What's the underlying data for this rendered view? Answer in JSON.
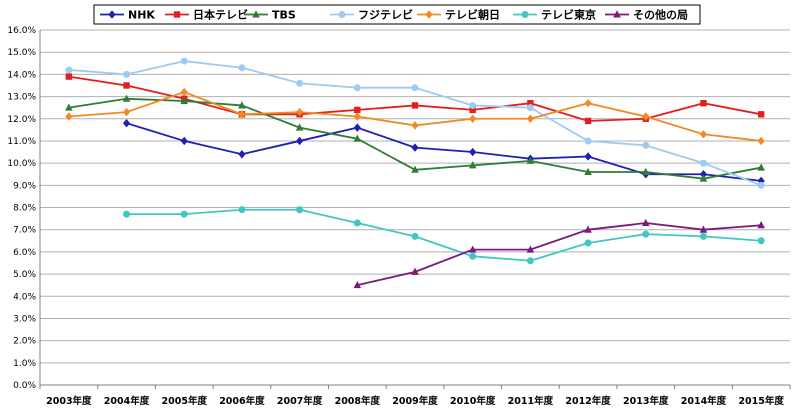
{
  "chart_data": {
    "type": "line",
    "categories": [
      "2003年度",
      "2004年度",
      "2005年度",
      "2006年度",
      "2007年度",
      "2008年度",
      "2009年度",
      "2010年度",
      "2011年度",
      "2012年度",
      "2013年度",
      "2014年度",
      "2015年度"
    ],
    "ylim": [
      0,
      16
    ],
    "y_ticks": [
      "0.0%",
      "1.0%",
      "2.0%",
      "3.0%",
      "4.0%",
      "5.0%",
      "6.0%",
      "7.0%",
      "8.0%",
      "9.0%",
      "10.0%",
      "11.0%",
      "12.0%",
      "13.0%",
      "14.0%",
      "15.0%",
      "16.0%"
    ],
    "grid": true,
    "legend": "top",
    "series": [
      {
        "name": "NHK",
        "color": "#1f1fb4",
        "marker": "diamond",
        "values": [
          null,
          11.8,
          11.0,
          10.4,
          11.0,
          11.6,
          10.7,
          10.5,
          10.2,
          10.3,
          9.5,
          9.5,
          9.2
        ]
      },
      {
        "name": "日本テレビ",
        "color": "#e0201f",
        "marker": "square",
        "values": [
          13.9,
          13.5,
          12.9,
          12.2,
          12.2,
          12.4,
          12.6,
          12.4,
          12.7,
          11.9,
          12.0,
          12.7,
          12.2
        ]
      },
      {
        "name": "TBS",
        "color": "#2e7d32",
        "marker": "triangle",
        "values": [
          12.5,
          12.9,
          12.8,
          12.6,
          11.6,
          11.1,
          9.7,
          9.9,
          10.1,
          9.6,
          9.6,
          9.3,
          9.8
        ]
      },
      {
        "name": "フジテレビ",
        "color": "#9ecbf2",
        "marker": "circle",
        "values": [
          14.2,
          14.0,
          14.6,
          14.3,
          13.6,
          13.4,
          13.4,
          12.6,
          12.5,
          11.0,
          10.8,
          10.0,
          9.0
        ]
      },
      {
        "name": "テレビ朝日",
        "color": "#f08a24",
        "marker": "diamond",
        "values": [
          12.1,
          12.3,
          13.2,
          12.2,
          12.3,
          12.1,
          11.7,
          12.0,
          12.0,
          12.7,
          12.1,
          11.3,
          11.0
        ]
      },
      {
        "name": "テレビ東京",
        "color": "#40c8c0",
        "marker": "circle",
        "values": [
          null,
          7.7,
          7.7,
          7.9,
          7.9,
          7.3,
          6.7,
          5.8,
          5.6,
          6.4,
          6.8,
          6.7,
          6.5
        ]
      },
      {
        "name": "その他の局",
        "color": "#7b1a7b",
        "marker": "triangle",
        "values": [
          null,
          null,
          null,
          null,
          null,
          4.5,
          5.1,
          6.1,
          6.1,
          7.0,
          7.3,
          7.0,
          7.2
        ]
      }
    ]
  }
}
